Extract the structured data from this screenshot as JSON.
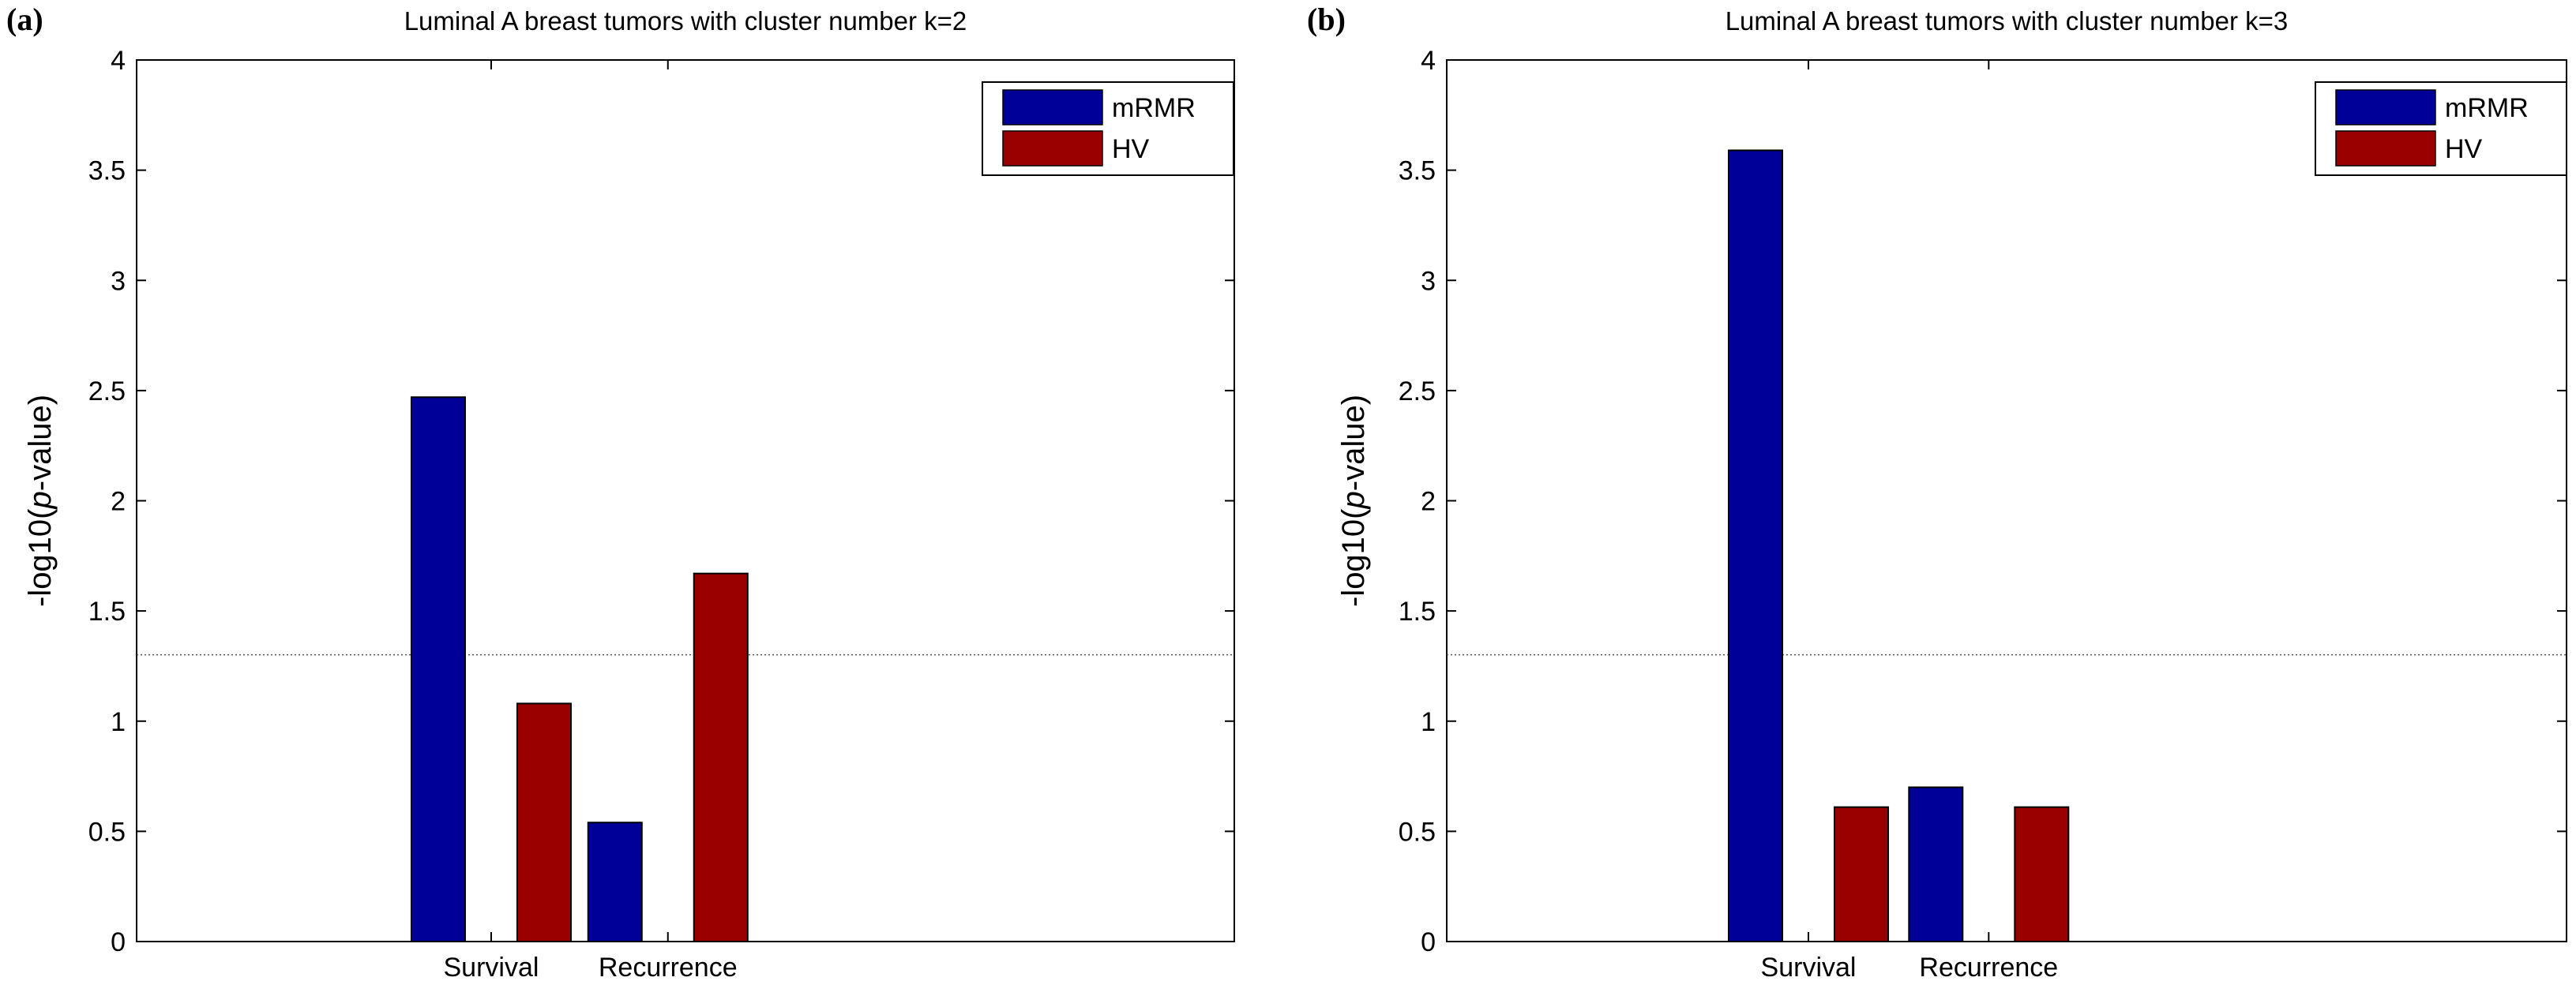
{
  "chart_data": [
    {
      "type": "bar",
      "panel_label": "(a)",
      "title": "Luminal A breast tumors with cluster number k=2",
      "xlabel": "",
      "ylabel_prefix": "-log10(",
      "ylabel_italic": "p",
      "ylabel_suffix": "-value)",
      "ylim": [
        0,
        4
      ],
      "yticks": [
        "0",
        "0.5",
        "1",
        "1.5",
        "2",
        "2.5",
        "3",
        "3.5",
        "4"
      ],
      "categories": [
        "Survival",
        "Recurrence"
      ],
      "series": [
        {
          "name": "mRMR",
          "color": "#000099",
          "values": [
            2.47,
            0.54
          ]
        },
        {
          "name": "HV",
          "color": "#990000",
          "values": [
            1.08,
            1.67
          ]
        }
      ],
      "threshold": 1.30103,
      "legend_position": "top-right"
    },
    {
      "type": "bar",
      "panel_label": "(b)",
      "title": "Luminal A breast tumors with cluster number k=3",
      "xlabel": "",
      "ylabel_prefix": "-log10(",
      "ylabel_italic": "p",
      "ylabel_suffix": "-value)",
      "ylim": [
        0,
        4
      ],
      "yticks": [
        "0",
        "0.5",
        "1",
        "1.5",
        "2",
        "2.5",
        "3",
        "3.5",
        "4"
      ],
      "categories": [
        "Survival",
        "Recurrence"
      ],
      "series": [
        {
          "name": "mRMR",
          "color": "#000099",
          "values": [
            3.59,
            0.7
          ]
        },
        {
          "name": "HV",
          "color": "#990000",
          "values": [
            0.61,
            0.61
          ]
        }
      ],
      "threshold": 1.30103,
      "legend_position": "top-right"
    }
  ]
}
